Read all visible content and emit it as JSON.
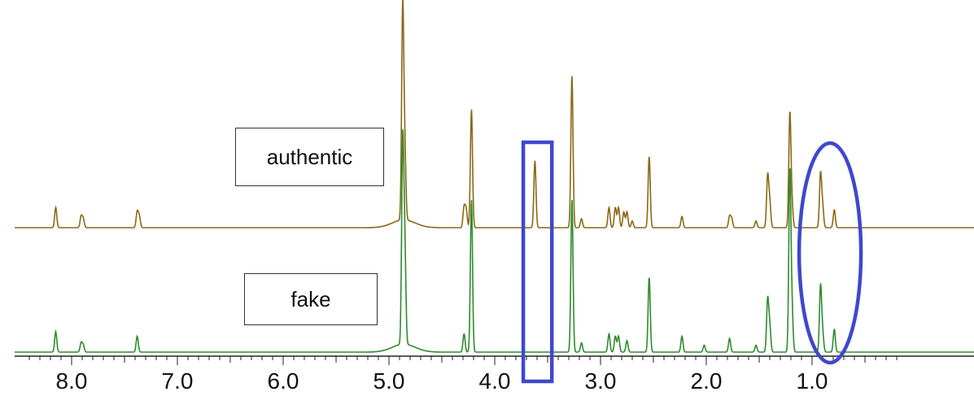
{
  "chart_data": {
    "type": "line",
    "title": "",
    "xlabel": "",
    "ylabel": "",
    "x_axis": {
      "reversed": true,
      "range": [
        8.42,
        0.24
      ],
      "tick_labels": [
        "8.0",
        "7.0",
        "6.0",
        "5.0",
        "4.0",
        "3.0",
        "2.0",
        "1.0"
      ],
      "tick_values": [
        8.0,
        7.0,
        6.0,
        5.0,
        4.0,
        3.0,
        2.0,
        1.0
      ]
    },
    "series": [
      {
        "name": "authentic",
        "color": "#8B6914",
        "peaks": [
          {
            "ppm": 8.15,
            "height": 0.09
          },
          {
            "ppm": 7.91,
            "height": 0.05
          },
          {
            "ppm": 7.89,
            "height": 0.04
          },
          {
            "ppm": 7.38,
            "height": 0.07
          },
          {
            "ppm": 7.36,
            "height": 0.05
          },
          {
            "ppm": 4.87,
            "height": 0.95
          },
          {
            "ppm": 4.85,
            "height": 0.3
          },
          {
            "ppm": 4.29,
            "height": 0.09
          },
          {
            "ppm": 4.27,
            "height": 0.08
          },
          {
            "ppm": 4.22,
            "height": 0.53
          },
          {
            "ppm": 3.62,
            "height": 0.3
          },
          {
            "ppm": 3.27,
            "height": 0.68
          },
          {
            "ppm": 3.18,
            "height": 0.04
          },
          {
            "ppm": 2.92,
            "height": 0.09
          },
          {
            "ppm": 2.86,
            "height": 0.09
          },
          {
            "ppm": 2.83,
            "height": 0.09
          },
          {
            "ppm": 2.78,
            "height": 0.07
          },
          {
            "ppm": 2.75,
            "height": 0.07
          },
          {
            "ppm": 2.7,
            "height": 0.03
          },
          {
            "ppm": 2.54,
            "height": 0.32
          },
          {
            "ppm": 2.23,
            "height": 0.05
          },
          {
            "ppm": 1.78,
            "height": 0.05
          },
          {
            "ppm": 1.76,
            "height": 0.04
          },
          {
            "ppm": 1.53,
            "height": 0.03
          },
          {
            "ppm": 1.42,
            "height": 0.23
          },
          {
            "ppm": 1.4,
            "height": 0.11
          },
          {
            "ppm": 1.21,
            "height": 0.51
          },
          {
            "ppm": 1.19,
            "height": 0.1
          },
          {
            "ppm": 0.92,
            "height": 0.24
          },
          {
            "ppm": 0.9,
            "height": 0.09
          },
          {
            "ppm": 0.79,
            "height": 0.08
          }
        ]
      },
      {
        "name": "fake",
        "color": "#2E8B2E",
        "peaks": [
          {
            "ppm": 8.15,
            "height": 0.09
          },
          {
            "ppm": 7.91,
            "height": 0.04
          },
          {
            "ppm": 7.89,
            "height": 0.03
          },
          {
            "ppm": 7.38,
            "height": 0.07
          },
          {
            "ppm": 4.87,
            "height": 0.88
          },
          {
            "ppm": 4.85,
            "height": 0.42
          },
          {
            "ppm": 4.29,
            "height": 0.08
          },
          {
            "ppm": 4.22,
            "height": 0.67
          },
          {
            "ppm": 3.27,
            "height": 0.67
          },
          {
            "ppm": 3.18,
            "height": 0.04
          },
          {
            "ppm": 2.92,
            "height": 0.08
          },
          {
            "ppm": 2.86,
            "height": 0.07
          },
          {
            "ppm": 2.83,
            "height": 0.07
          },
          {
            "ppm": 2.75,
            "height": 0.05
          },
          {
            "ppm": 2.54,
            "height": 0.33
          },
          {
            "ppm": 2.23,
            "height": 0.07
          },
          {
            "ppm": 2.02,
            "height": 0.03
          },
          {
            "ppm": 1.78,
            "height": 0.06
          },
          {
            "ppm": 1.53,
            "height": 0.03
          },
          {
            "ppm": 1.42,
            "height": 0.23
          },
          {
            "ppm": 1.4,
            "height": 0.11
          },
          {
            "ppm": 1.21,
            "height": 0.79
          },
          {
            "ppm": 1.19,
            "height": 0.18
          },
          {
            "ppm": 0.92,
            "height": 0.29
          },
          {
            "ppm": 0.9,
            "height": 0.08
          },
          {
            "ppm": 0.79,
            "height": 0.1
          }
        ]
      }
    ],
    "annotations": [
      {
        "type": "rectangle",
        "color": "#3F48CC",
        "ppm_range": [
          3.73,
          3.46
        ],
        "note": "highlighted region"
      },
      {
        "type": "ellipse",
        "color": "#3F48CC",
        "ppm_center": 0.83,
        "note": "highlighted region"
      }
    ],
    "grid": false,
    "legend": "text boxes above each trace"
  },
  "labels": {
    "authentic": "authentic",
    "fake": "fake"
  }
}
